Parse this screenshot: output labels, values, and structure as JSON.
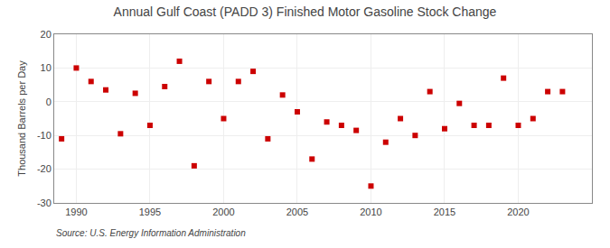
{
  "chart_data": {
    "type": "scatter",
    "title": "Annual Gulf Coast (PADD 3) Finished Motor Gasoline Stock Change",
    "ylabel": "Thousand Barrels per Day",
    "annotations": [
      "Source: U.S. Energy Information Administration"
    ],
    "x": [
      1989,
      1990,
      1991,
      1992,
      1993,
      1994,
      1995,
      1996,
      1997,
      1998,
      1999,
      2000,
      2001,
      2002,
      2003,
      2004,
      2005,
      2006,
      2007,
      2008,
      2009,
      2010,
      2011,
      2012,
      2013,
      2014,
      2015,
      2016,
      2017,
      2018,
      2019,
      2020,
      2021,
      2022,
      2023
    ],
    "values": [
      -11,
      10,
      6,
      3.5,
      -9.5,
      2.5,
      -7,
      4.5,
      12,
      -19,
      6,
      -5,
      6,
      9,
      -11,
      2,
      -3,
      -17,
      -6,
      -7,
      -8.5,
      -25,
      -12,
      -5,
      -10,
      3,
      -8,
      -0.5,
      -7,
      -7,
      7,
      -7,
      -5,
      3,
      3
    ],
    "color": "#cc0000",
    "marker": "square",
    "xlim": [
      1988.5,
      2025
    ],
    "xticks": [
      1990,
      1995,
      2000,
      2005,
      2010,
      2015,
      2020
    ],
    "ylim": [
      -30,
      20
    ],
    "yticks": [
      -30,
      -20,
      -10,
      0,
      10,
      20
    ],
    "grid": true
  }
}
